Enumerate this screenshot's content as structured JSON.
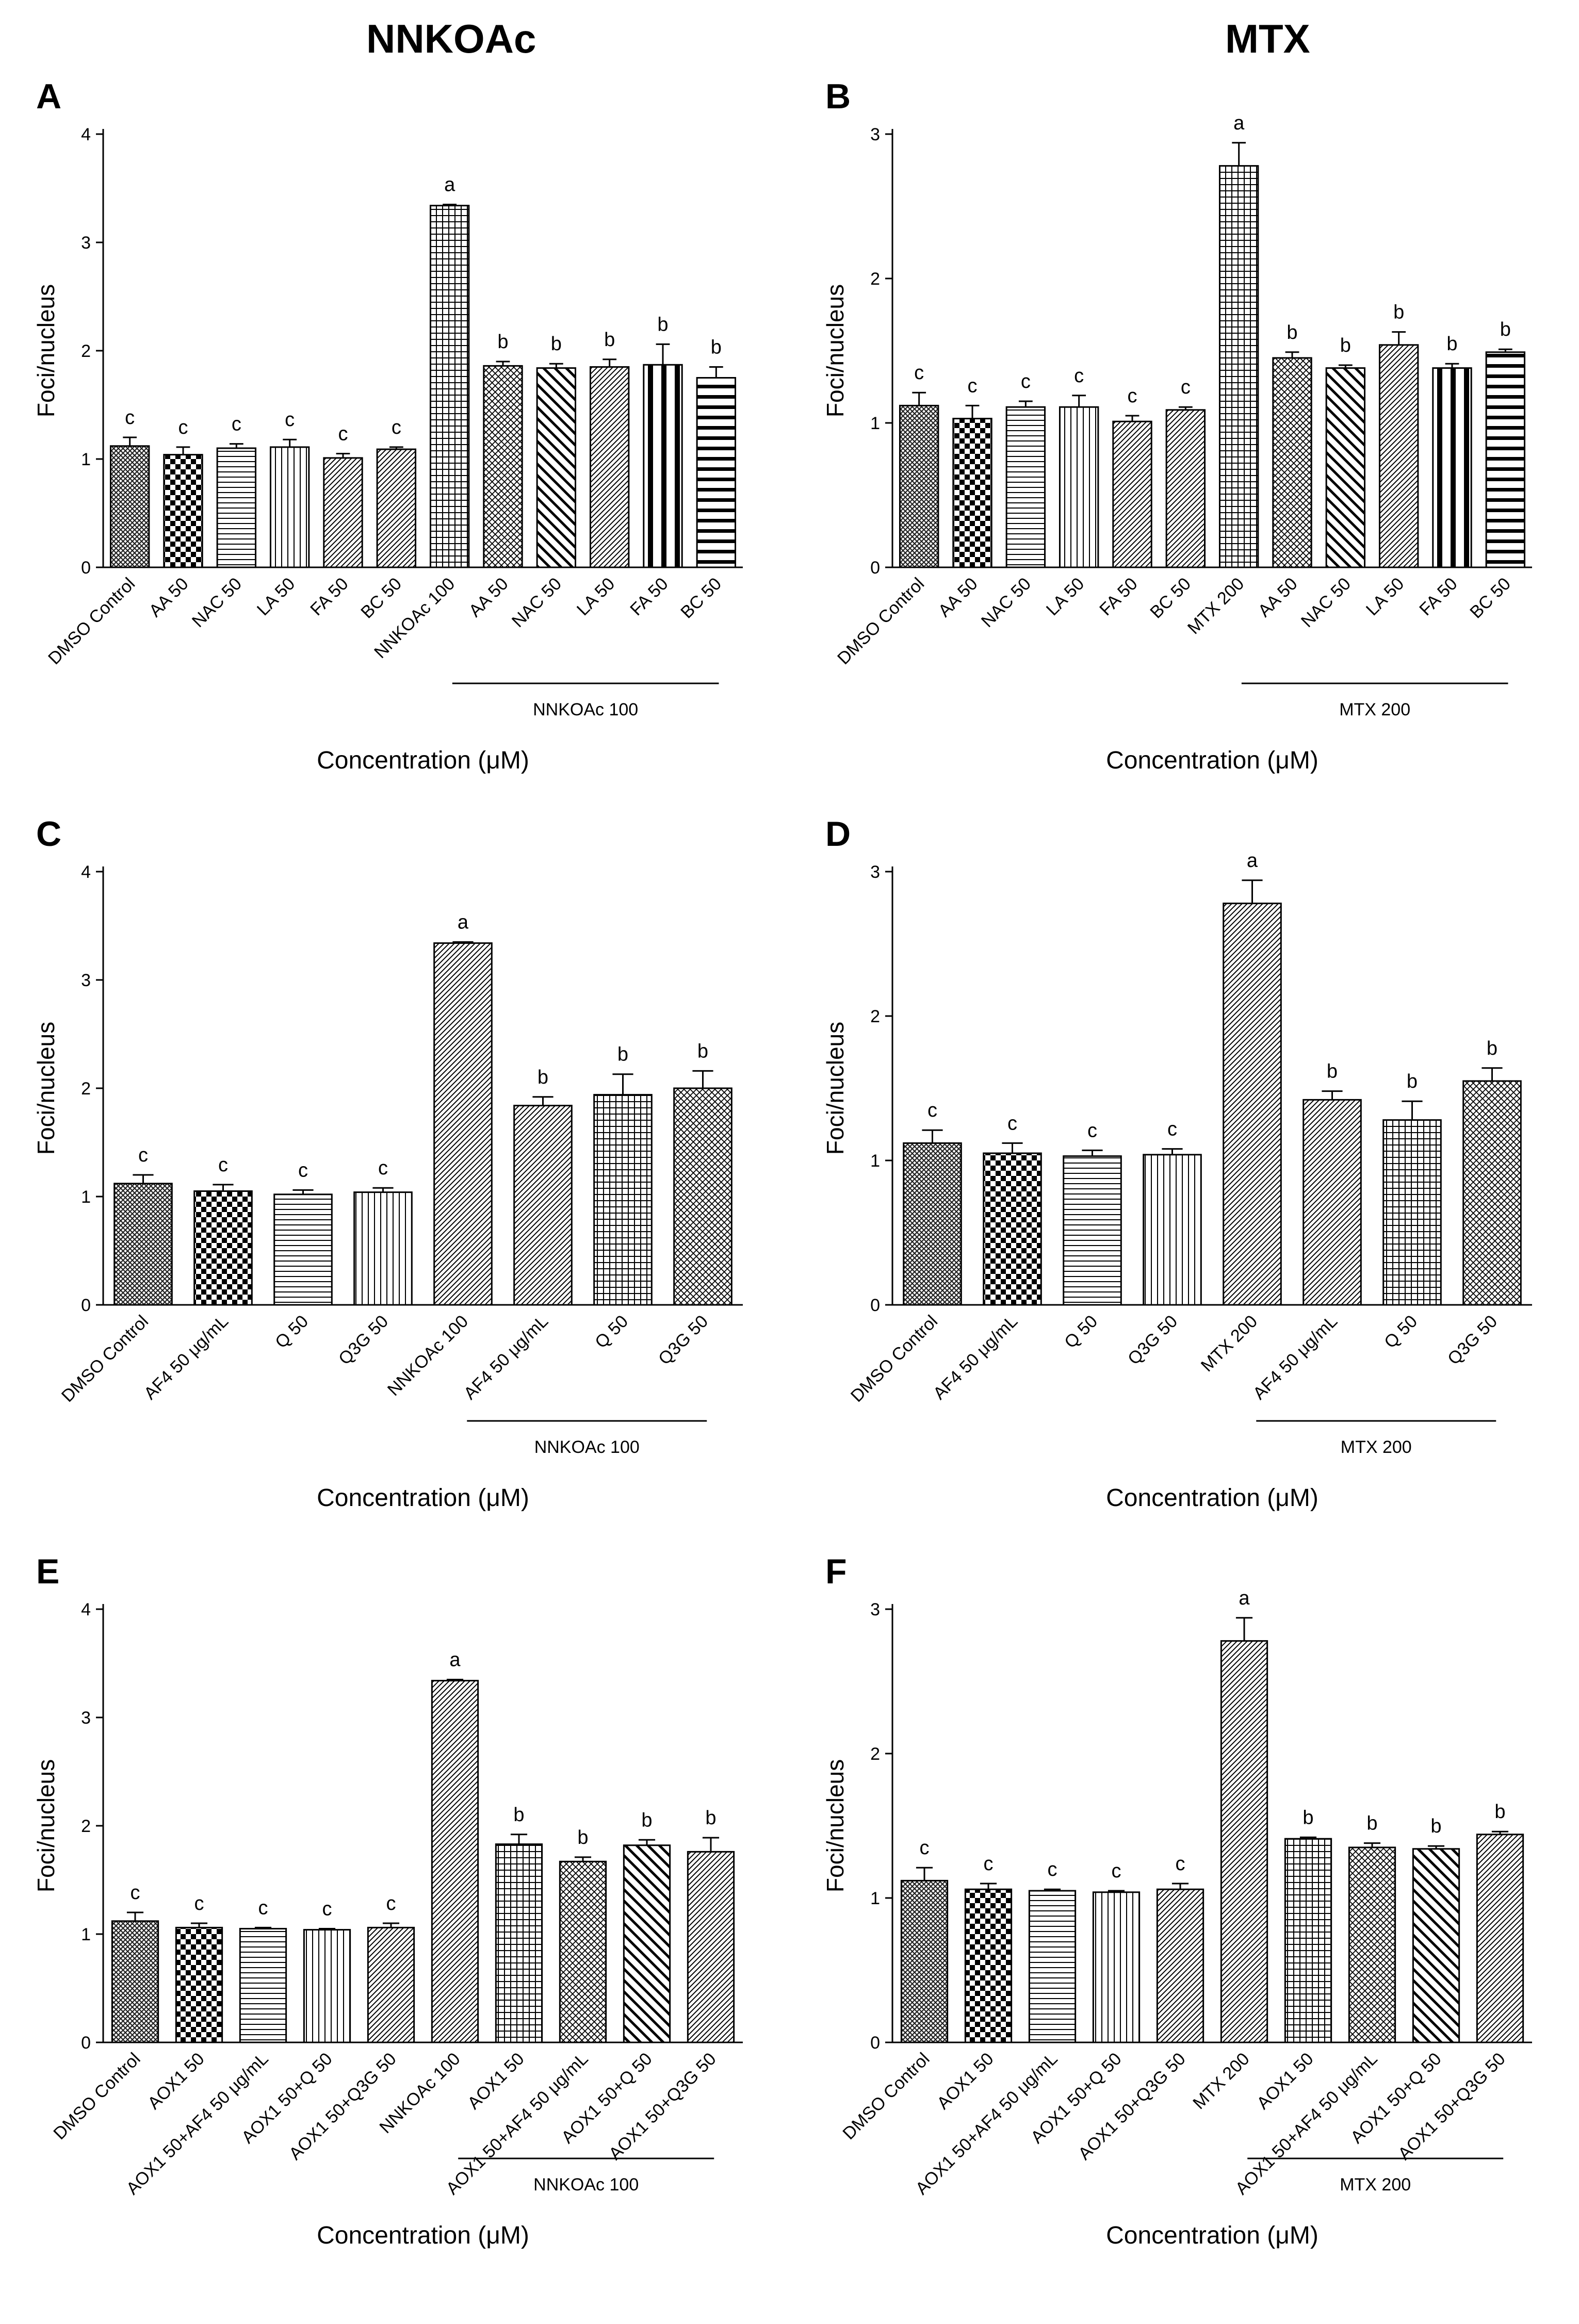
{
  "column_titles": {
    "left": "NNKOAc",
    "right": "MTX"
  },
  "chart_data": [
    {
      "panel": "A",
      "type": "bar",
      "ylabel": "Foci/nucleus",
      "xlabel": "Concentration (μM)",
      "ylim": [
        0,
        4
      ],
      "yticks": [
        "0",
        "1",
        "2",
        "3",
        "4"
      ],
      "categories": [
        "DMSO Control",
        "AA 50",
        "NAC 50",
        "LA 50",
        "FA 50",
        "BC 50",
        "NNKOAc 100",
        "AA 50",
        "NAC 50",
        "LA 50",
        "FA 50",
        "BC 50"
      ],
      "values": [
        1.12,
        1.04,
        1.1,
        1.11,
        1.01,
        1.09,
        3.34,
        1.86,
        1.84,
        1.85,
        1.87,
        1.75
      ],
      "errors": [
        0.08,
        0.07,
        0.04,
        0.07,
        0.04,
        0.02,
        0.01,
        0.04,
        0.04,
        0.07,
        0.19,
        0.1
      ],
      "labels": [
        "c",
        "c",
        "c",
        "c",
        "c",
        "c",
        "a",
        "b",
        "b",
        "b",
        "b",
        "b"
      ],
      "patterns": [
        "cross",
        "checker",
        "hlines",
        "vlines",
        "diag",
        "diag",
        "grid",
        "diagcross",
        "backdiag",
        "diag",
        "thick",
        "hbars"
      ],
      "group": {
        "label": "NNKOAc 100",
        "from": 7,
        "to": 11
      }
    },
    {
      "panel": "B",
      "type": "bar",
      "ylabel": "Foci/nucleus",
      "xlabel": "Concentration (μM)",
      "ylim": [
        0,
        3
      ],
      "yticks": [
        "0",
        "1",
        "2",
        "3"
      ],
      "categories": [
        "DMSO Control",
        "AA 50",
        "NAC 50",
        "LA 50",
        "FA 50",
        "BC 50",
        "MTX 200",
        "AA 50",
        "NAC 50",
        "LA 50",
        "FA 50",
        "BC 50"
      ],
      "values": [
        1.12,
        1.03,
        1.11,
        1.11,
        1.01,
        1.09,
        2.78,
        1.45,
        1.38,
        1.54,
        1.38,
        1.49
      ],
      "errors": [
        0.09,
        0.09,
        0.04,
        0.08,
        0.04,
        0.02,
        0.16,
        0.04,
        0.02,
        0.09,
        0.03,
        0.02
      ],
      "labels": [
        "c",
        "c",
        "c",
        "c",
        "c",
        "c",
        "a",
        "b",
        "b",
        "b",
        "b",
        "b"
      ],
      "patterns": [
        "cross",
        "checker",
        "hlines",
        "vlines",
        "diag",
        "diag",
        "grid",
        "diagcross",
        "backdiag",
        "diag",
        "thick",
        "hbars"
      ],
      "group": {
        "label": "MTX 200",
        "from": 7,
        "to": 11
      }
    },
    {
      "panel": "C",
      "type": "bar",
      "ylabel": "Foci/nucleus",
      "xlabel": "Concentration (μM)",
      "ylim": [
        0,
        4
      ],
      "yticks": [
        "0",
        "1",
        "2",
        "3",
        "4"
      ],
      "categories": [
        "DMSO Control",
        "AF4 50 μg/mL",
        "Q 50",
        "Q3G 50",
        "NNKOAc 100",
        "AF4 50 μg/mL",
        "Q 50",
        "Q3G 50"
      ],
      "values": [
        1.12,
        1.05,
        1.02,
        1.04,
        3.34,
        1.84,
        1.94,
        2.0
      ],
      "errors": [
        0.08,
        0.06,
        0.04,
        0.04,
        0.01,
        0.08,
        0.19,
        0.16
      ],
      "labels": [
        "c",
        "c",
        "c",
        "c",
        "a",
        "b",
        "b",
        "b"
      ],
      "patterns": [
        "cross",
        "checker",
        "hlines",
        "vlines",
        "diag",
        "diag",
        "grid",
        "diagcross"
      ],
      "group": {
        "label": "NNKOAc 100",
        "from": 5,
        "to": 7
      }
    },
    {
      "panel": "D",
      "type": "bar",
      "ylabel": "Foci/nucleus",
      "xlabel": "Concentration (μM)",
      "ylim": [
        0,
        3
      ],
      "yticks": [
        "0",
        "1",
        "2",
        "3"
      ],
      "categories": [
        "DMSO Control",
        "AF4 50 μg/mL",
        "Q 50",
        "Q3G 50",
        "MTX 200",
        "AF4 50 μg/mL",
        "Q 50",
        "Q3G 50"
      ],
      "values": [
        1.12,
        1.05,
        1.03,
        1.04,
        2.78,
        1.42,
        1.28,
        1.55
      ],
      "errors": [
        0.09,
        0.07,
        0.04,
        0.04,
        0.16,
        0.06,
        0.13,
        0.09
      ],
      "labels": [
        "c",
        "c",
        "c",
        "c",
        "a",
        "b",
        "b",
        "b"
      ],
      "patterns": [
        "cross",
        "checker",
        "hlines",
        "vlines",
        "diag",
        "diag",
        "grid",
        "diagcross"
      ],
      "group": {
        "label": "MTX 200",
        "from": 5,
        "to": 7
      }
    },
    {
      "panel": "E",
      "type": "bar",
      "ylabel": "Foci/nucleus",
      "xlabel": "Concentration (μM)",
      "ylim": [
        0,
        4
      ],
      "yticks": [
        "0",
        "1",
        "2",
        "3",
        "4"
      ],
      "categories": [
        "DMSO Control",
        "AOX1 50",
        "AOX1 50+AF4 50 μg/mL",
        "AOX1 50+Q 50",
        "AOX1 50+Q3G 50",
        "NNKOAc 100",
        "AOX1 50",
        "AOX1 50+AF4 50 μg/mL",
        "AOX1 50+Q 50",
        "AOX1 50+Q3G 50"
      ],
      "values": [
        1.12,
        1.06,
        1.05,
        1.04,
        1.06,
        3.34,
        1.83,
        1.67,
        1.82,
        1.76
      ],
      "errors": [
        0.08,
        0.04,
        0.01,
        0.01,
        0.04,
        0.01,
        0.09,
        0.04,
        0.05,
        0.13
      ],
      "labels": [
        "c",
        "c",
        "c",
        "c",
        "c",
        "a",
        "b",
        "b",
        "b",
        "b"
      ],
      "patterns": [
        "cross",
        "checker",
        "hlines",
        "vlines",
        "diag",
        "diag",
        "grid",
        "diagcross",
        "backdiag",
        "diag"
      ],
      "group": {
        "label": "NNKOAc 100",
        "from": 6,
        "to": 9
      }
    },
    {
      "panel": "F",
      "type": "bar",
      "ylabel": "Foci/nucleus",
      "xlabel": "Concentration (μM)",
      "ylim": [
        0,
        3
      ],
      "yticks": [
        "0",
        "1",
        "2",
        "3"
      ],
      "categories": [
        "DMSO Control",
        "AOX1 50",
        "AOX1 50+AF4 50 μg/mL",
        "AOX1 50+Q 50",
        "AOX1 50+Q3G 50",
        "MTX 200",
        "AOX1 50",
        "AOX1 50+AF4 50 μg/mL",
        "AOX1 50+Q 50",
        "AOX1 50+Q3G 50"
      ],
      "values": [
        1.12,
        1.06,
        1.05,
        1.04,
        1.06,
        2.78,
        1.41,
        1.35,
        1.34,
        1.44
      ],
      "errors": [
        0.09,
        0.04,
        0.01,
        0.01,
        0.04,
        0.16,
        0.01,
        0.03,
        0.02,
        0.02
      ],
      "labels": [
        "c",
        "c",
        "c",
        "c",
        "c",
        "a",
        "b",
        "b",
        "b",
        "b"
      ],
      "patterns": [
        "cross",
        "checker",
        "hlines",
        "vlines",
        "diag",
        "diag",
        "grid",
        "diagcross",
        "backdiag",
        "diag"
      ],
      "group": {
        "label": "MTX 200",
        "from": 6,
        "to": 9
      }
    }
  ]
}
